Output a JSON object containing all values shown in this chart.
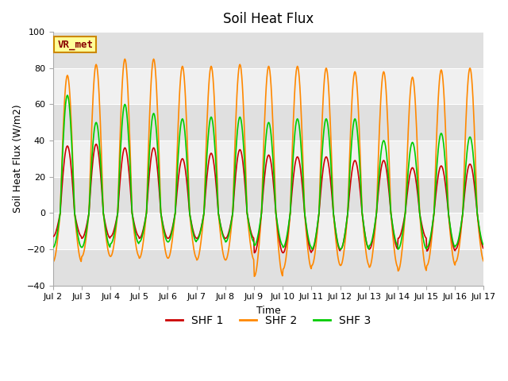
{
  "title": "Soil Heat Flux",
  "ylabel": "Soil Heat Flux (W/m2)",
  "xlabel": "Time",
  "ylim": [
    -40,
    100
  ],
  "x_tick_labels": [
    "Jul 2",
    "Jul 3",
    "Jul 4",
    "Jul 5",
    "Jul 6",
    "Jul 7",
    "Jul 8",
    "Jul 9",
    "Jul 10",
    "Jul 11",
    "Jul 12",
    "Jul 13",
    "Jul 14",
    "Jul 15",
    "Jul 16",
    "Jul 17"
  ],
  "legend_labels": [
    "SHF 1",
    "SHF 2",
    "SHF 3"
  ],
  "colors": {
    "SHF1": "#cc0000",
    "SHF2": "#ff8800",
    "SHF3": "#00cc00"
  },
  "fig_bg": "#ffffff",
  "plot_bg_light": "#f0f0f0",
  "plot_bg_dark": "#e0e0e0",
  "annotation_text": "VR_met",
  "annotation_bg": "#ffff99",
  "annotation_border": "#cc8800",
  "points_per_day": 48,
  "num_days": 15,
  "title_fontsize": 12,
  "axis_fontsize": 9,
  "tick_fontsize": 8,
  "legend_fontsize": 10,
  "peaks_shf1": [
    37,
    38,
    36,
    36,
    30,
    33,
    35,
    32,
    31,
    31,
    29,
    29,
    25,
    26,
    27
  ],
  "troughs_shf1": [
    -13,
    -14,
    -13,
    -14,
    -14,
    -14,
    -14,
    -22,
    -22,
    -21,
    -20,
    -20,
    -14,
    -21,
    -20
  ],
  "peaks_shf2": [
    76,
    82,
    85,
    85,
    81,
    81,
    82,
    81,
    81,
    80,
    78,
    78,
    75,
    79,
    80
  ],
  "troughs_shf2": [
    -27,
    -24,
    -24,
    -25,
    -25,
    -26,
    -26,
    -35,
    -31,
    -29,
    -29,
    -30,
    -32,
    -29,
    -27
  ],
  "peaks_shf3": [
    65,
    50,
    60,
    55,
    52,
    53,
    53,
    50,
    52,
    52,
    52,
    40,
    39,
    44,
    42
  ],
  "troughs_shf3": [
    -19,
    -19,
    -17,
    -16,
    -16,
    -15,
    -16,
    -18,
    -19,
    -20,
    -20,
    -18,
    -20,
    -19,
    -18
  ]
}
